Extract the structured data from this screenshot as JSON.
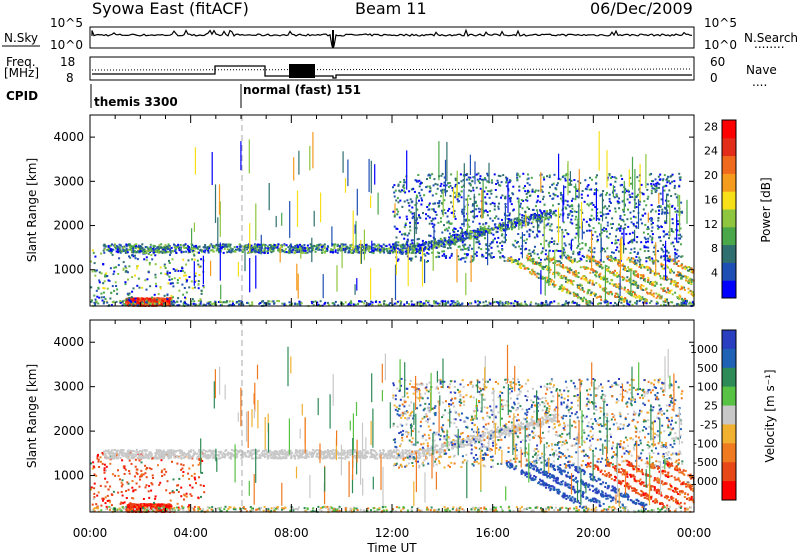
{
  "header": {
    "title": "Syowa East (fitACF)",
    "beam": "Beam 11",
    "date": "06/Dec/2009"
  },
  "top_panels": {
    "nsky_label": "N.Sky",
    "nsky_top": "10^5",
    "nsky_bottom": "10^0",
    "nsearch_top": "10^5",
    "nsearch_bottom": "10^0",
    "nsearch_label": "N.Search",
    "nsearch_legend": "........",
    "freq_label_1": "Freq.",
    "freq_label_2": "[MHz]",
    "freq_top": "18",
    "freq_bottom": "8",
    "nave_top": "60",
    "nave_bottom": "0",
    "nave_label": "Nave",
    "nave_legend": "....",
    "cpid_label": "CPID",
    "cpid_1": "themis 3300",
    "cpid_2": "normal (fast) 151"
  },
  "chart_data": [
    {
      "type": "heatmap",
      "name": "power",
      "ylabel": "Slant Range [km]",
      "xlabel": "",
      "y_ticks": [
        "1000",
        "2000",
        "3000",
        "4000"
      ],
      "ylim": [
        180,
        4500
      ],
      "colorbar_label": "Power [dB]",
      "colorbar_ticks": [
        "4",
        "8",
        "12",
        "16",
        "20",
        "24",
        "28"
      ],
      "colors": [
        "#0000ff",
        "#1e4fb4",
        "#2f6f6f",
        "#4aa84a",
        "#8ec63f",
        "#f7e017",
        "#f59b1e",
        "#f06a1e",
        "#e32d1b",
        "#ff0000"
      ]
    },
    {
      "type": "heatmap",
      "name": "velocity",
      "ylabel": "Slant Range [km]",
      "xlabel": "Time UT",
      "y_ticks": [
        "1000",
        "2000",
        "3000",
        "4000"
      ],
      "ylim": [
        180,
        4500
      ],
      "colorbar_label": "Velocity [m s⁻¹]",
      "colorbar_ticks": [
        "1000",
        "500",
        "100",
        "25",
        "-25",
        "-100",
        "-500",
        "-1000"
      ],
      "colors": [
        "#2a3fbf",
        "#1f62b5",
        "#2e8b57",
        "#58c244",
        "#c8c8c8",
        "#f0b030",
        "#f07a20",
        "#e84818",
        "#ff0000"
      ],
      "x_ticks": [
        "00:00",
        "04:00",
        "08:00",
        "12:00",
        "16:00",
        "20:00",
        "00:00"
      ]
    }
  ]
}
